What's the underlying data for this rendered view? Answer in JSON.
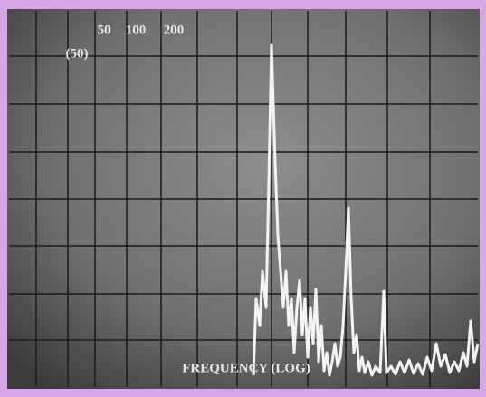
{
  "screen": {
    "top_labels": [
      "50",
      "100",
      "200"
    ],
    "scale_label": "(50)",
    "axis_label": "FREQUENCY (LOG)"
  }
}
